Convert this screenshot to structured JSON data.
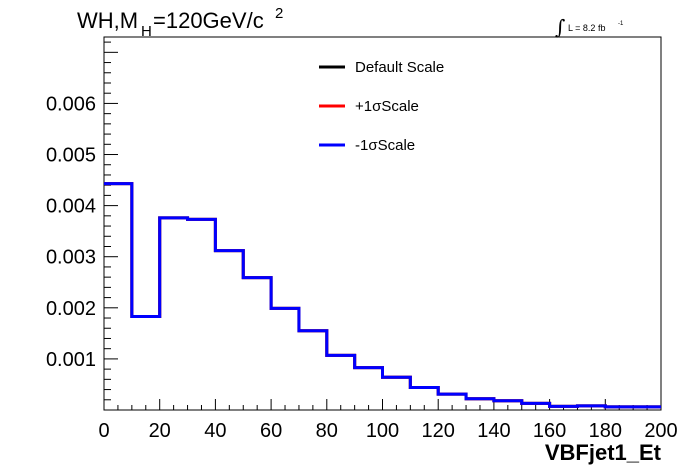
{
  "chart_data": {
    "type": "line",
    "title": "WH,M",
    "title_sub": "H",
    "title_rest": "=120GeV/c",
    "title_sup": "2",
    "lumi_text": "L = 8.2 fb",
    "lumi_sup": "-1",
    "xlabel": "VBFjet1_Et",
    "ylabel": "",
    "xlim": [
      0,
      200
    ],
    "ylim": [
      0,
      0.0073
    ],
    "grid": false,
    "legend_position": "top-center",
    "x_ticks": [
      "0",
      "20",
      "40",
      "60",
      "80",
      "100",
      "120",
      "140",
      "160",
      "180",
      "200"
    ],
    "y_ticks": [
      "0.001",
      "0.002",
      "0.003",
      "0.004",
      "0.005",
      "0.006"
    ],
    "bin_edges": [
      0,
      10,
      20,
      30,
      40,
      50,
      60,
      70,
      80,
      90,
      100,
      110,
      120,
      130,
      140,
      150,
      160,
      170,
      180,
      190,
      200
    ],
    "series": [
      {
        "name": "Default Scale",
        "color": "#000000",
        "values": [
          0.00443,
          0.00183,
          0.00376,
          0.00373,
          0.00312,
          0.00259,
          0.00199,
          0.00155,
          0.00107,
          0.00083,
          0.00064,
          0.00044,
          0.00031,
          0.00022,
          0.00018,
          0.00013,
          7e-05,
          8e-05,
          6e-05,
          6e-05
        ]
      },
      {
        "name": "+1σScale",
        "color": "#ff0000",
        "values": [
          0.00443,
          0.00183,
          0.00376,
          0.00373,
          0.00312,
          0.00259,
          0.00199,
          0.00155,
          0.00107,
          0.00083,
          0.00064,
          0.00044,
          0.00031,
          0.00022,
          0.00018,
          0.00013,
          7e-05,
          8e-05,
          6e-05,
          6e-05
        ]
      },
      {
        "name": "-1σScale",
        "color": "#0000ff",
        "values": [
          0.00443,
          0.00183,
          0.00376,
          0.00373,
          0.00312,
          0.00259,
          0.00199,
          0.00155,
          0.00107,
          0.00083,
          0.00064,
          0.00044,
          0.00031,
          0.00022,
          0.00018,
          0.00013,
          7e-05,
          8e-05,
          6e-05,
          6e-05
        ]
      }
    ]
  }
}
